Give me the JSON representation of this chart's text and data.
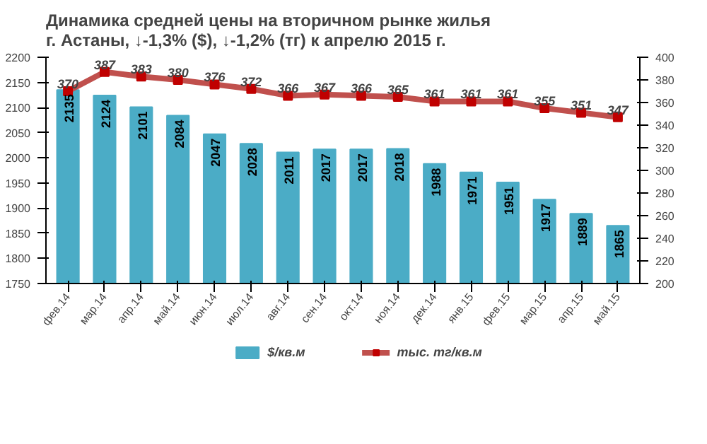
{
  "chart_data": {
    "type": "bar",
    "title": "Динамика средней  цены на вторичном рынке жилья\nг. Астаны, ↓-1,3% ($),  ↓-1,2% (тг) к апрелю 2015 г.",
    "categories": [
      "фев.14",
      "мар.14",
      "апр.14",
      "май.14",
      "июн.14",
      "июл.14",
      "авг.14",
      "сен.14",
      "окт.14",
      "ноя.14",
      "дек.14",
      "янв.15",
      "фев.15",
      "мар.15",
      "апр.15",
      "май.15"
    ],
    "series": [
      {
        "name": "$/кв.м",
        "color": "#4bacc6",
        "values": [
          2135,
          2124,
          2101,
          2084,
          2047,
          2028,
          2011,
          2017,
          2017,
          2018,
          1988,
          1971,
          1951,
          1917,
          1889,
          1865
        ]
      },
      {
        "name": "тыс. тг/кв.м",
        "type": "line",
        "axis": "y2",
        "color": "#c0504d",
        "values": [
          370,
          387,
          383,
          380,
          376,
          372,
          366,
          367,
          366,
          365,
          361,
          361,
          361,
          355,
          351,
          347
        ]
      }
    ],
    "ylim": [
      1750,
      2200
    ],
    "yticks": [
      1750,
      1800,
      1850,
      1900,
      1950,
      2000,
      2050,
      2100,
      2150,
      2200
    ],
    "y2lim": [
      200,
      400
    ],
    "y2ticks": [
      200,
      220,
      240,
      260,
      280,
      300,
      320,
      340,
      360,
      380,
      400
    ],
    "data_labels": true,
    "marker": "square",
    "legend": "bottom",
    "grid": false
  }
}
